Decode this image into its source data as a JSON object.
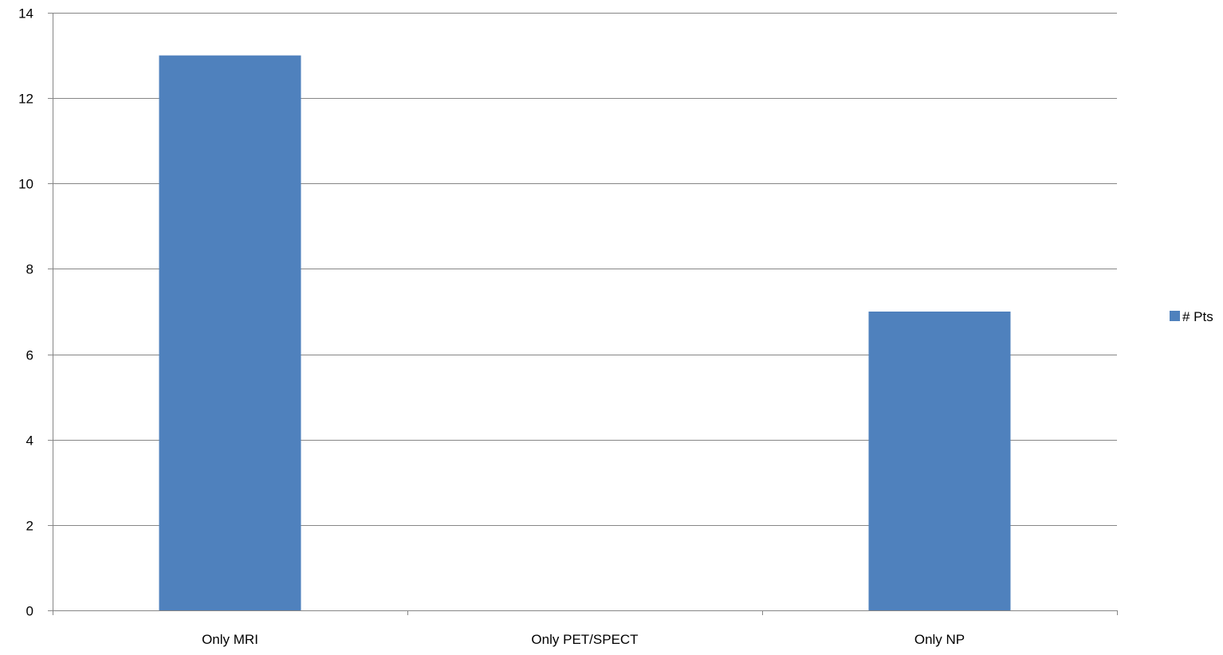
{
  "chart_data": {
    "type": "bar",
    "categories": [
      "Only MRI",
      "Only PET/SPECT",
      "Only NP"
    ],
    "series": [
      {
        "name": "# Pts",
        "values": [
          13,
          0,
          7
        ],
        "color": "#4F81BD"
      }
    ],
    "ylim": [
      0,
      14
    ],
    "yticks": [
      0,
      2,
      4,
      6,
      8,
      10,
      12,
      14
    ],
    "grid": true,
    "legend_position": "right",
    "title": "",
    "xlabel": "",
    "ylabel": ""
  }
}
